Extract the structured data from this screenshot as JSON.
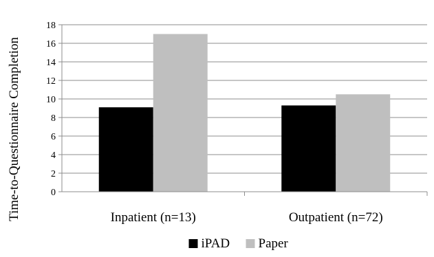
{
  "chart_data": {
    "type": "bar",
    "title": "",
    "xlabel": "",
    "ylabel": "Time-to-Questionnaire Completion",
    "categories": [
      "Inpatient (n=13)",
      "Outpatient (n=72)"
    ],
    "series": [
      {
        "name": "iPAD",
        "values": [
          9.1,
          9.3
        ],
        "color": "#000000"
      },
      {
        "name": "Paper",
        "values": [
          17.0,
          10.5
        ],
        "color": "#bfbfbf"
      }
    ],
    "ylim": [
      0,
      18
    ],
    "yticks": [
      "0",
      "2",
      "4",
      "6",
      "8",
      "10",
      "12",
      "14",
      "16",
      "18"
    ],
    "grid": true,
    "legend_position": "bottom"
  }
}
